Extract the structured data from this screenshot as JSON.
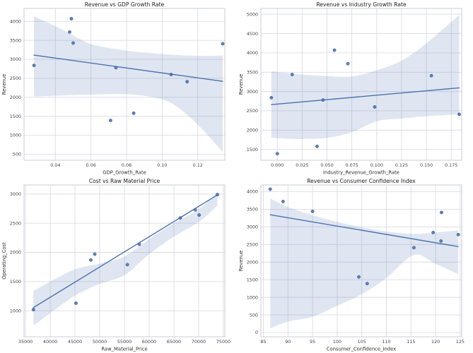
{
  "style": {
    "background": "#ffffff",
    "point_color": "#4c72b0",
    "point_edge_color": "#3c5f94",
    "line_color": "#4c72b0",
    "band_fill": "#4c72b0",
    "band_opacity": 0.18,
    "grid_color": "#dbdce5",
    "spine_color": "#c9ccd4",
    "title_color": "#1c1c1c",
    "tick_color": "#424242"
  },
  "chart_data": [
    {
      "type": "scatter",
      "title": "Revenue vs GDP Growth Rate",
      "xlabel": "GDP_Growth_Rate",
      "ylabel": "Revenue",
      "xlim": [
        0.0224,
        0.1352
      ],
      "ylim": [
        340,
        4340
      ],
      "xticks": [
        "0.04",
        "0.06",
        "0.08",
        "0.10",
        "0.12"
      ],
      "yticks": [
        "500",
        "1000",
        "1500",
        "2000",
        "2500",
        "3000",
        "3500",
        "4000"
      ],
      "grid": true,
      "legend": false,
      "points": [
        [
          0.028,
          2840
        ],
        [
          0.048,
          3720
        ],
        [
          0.049,
          4070
        ],
        [
          0.05,
          3430
        ],
        [
          0.071,
          1390
        ],
        [
          0.074,
          2780
        ],
        [
          0.084,
          1580
        ],
        [
          0.105,
          2600
        ],
        [
          0.114,
          2410
        ],
        [
          0.134,
          3410
        ]
      ],
      "regline": {
        "x1": 0.028,
        "y1": 3110,
        "x2": 0.134,
        "y2": 2420
      },
      "band": {
        "x": [
          0.028,
          0.045,
          0.06,
          0.08,
          0.095,
          0.105,
          0.115,
          0.125,
          0.134
        ],
        "upper": [
          4130,
          3760,
          3400,
          3230,
          3160,
          3120,
          3100,
          3090,
          3100
        ],
        "lower": [
          2020,
          2050,
          2070,
          2080,
          2000,
          1850,
          1500,
          1030,
          560
        ]
      }
    },
    {
      "type": "scatter",
      "title": "Revenue vs Industry Growth Rate",
      "xlabel": "Industry_Revenue_Growth_Rate",
      "ylabel": "Revenue",
      "xlim": [
        -0.0165,
        0.1855
      ],
      "ylim": [
        1220,
        5150
      ],
      "xticks": [
        "0.000",
        "0.025",
        "0.050",
        "0.075",
        "0.100",
        "0.125",
        "0.150",
        "0.175"
      ],
      "yticks": [
        "1500",
        "2000",
        "2500",
        "3000",
        "3500",
        "4000",
        "4500",
        "5000"
      ],
      "grid": true,
      "legend": false,
      "points": [
        [
          -0.006,
          2840
        ],
        [
          0.0,
          1390
        ],
        [
          0.015,
          3440
        ],
        [
          0.04,
          1580
        ],
        [
          0.046,
          2780
        ],
        [
          0.0575,
          4070
        ],
        [
          0.071,
          3720
        ],
        [
          0.098,
          2600
        ],
        [
          0.155,
          3410
        ],
        [
          0.183,
          2410
        ]
      ],
      "regline": {
        "x1": -0.006,
        "y1": 2660,
        "x2": 0.183,
        "y2": 3095
      },
      "band": {
        "x": [
          -0.006,
          0.02,
          0.05,
          0.075,
          0.1,
          0.125,
          0.15,
          0.183
        ],
        "upper": [
          3520,
          3450,
          3400,
          3390,
          3550,
          3800,
          4250,
          4980
        ],
        "lower": [
          1800,
          1770,
          1800,
          1950,
          2230,
          2300,
          2360,
          2410
        ]
      }
    },
    {
      "type": "scatter",
      "title": "Cost vs Raw Material Price",
      "xlabel": "Raw_Material_Price",
      "ylabel": "Operating_Cost",
      "xlim": [
        34700,
        75300
      ],
      "ylim": [
        555,
        3155
      ],
      "xticks": [
        "35000",
        "40000",
        "45000",
        "50000",
        "55000",
        "60000",
        "65000",
        "70000",
        "75000"
      ],
      "yticks": [
        "1000",
        "1500",
        "2000",
        "2500",
        "3000"
      ],
      "grid": true,
      "legend": false,
      "points": [
        [
          36600,
          1020
        ],
        [
          45200,
          1130
        ],
        [
          48200,
          1870
        ],
        [
          49000,
          1970
        ],
        [
          55600,
          1790
        ],
        [
          58000,
          2140
        ],
        [
          66300,
          2590
        ],
        [
          69300,
          2730
        ],
        [
          70100,
          2640
        ],
        [
          73800,
          2990
        ]
      ],
      "regline": {
        "x1": 36600,
        "y1": 1055,
        "x2": 73800,
        "y2": 2985
      },
      "band": {
        "x": [
          36600,
          40000,
          45000,
          50000,
          55000,
          60000,
          65000,
          70000,
          73800
        ],
        "upper": [
          1340,
          1500,
          1710,
          1810,
          1930,
          2230,
          2500,
          2740,
          3030
        ],
        "lower": [
          745,
          960,
          1260,
          1460,
          1610,
          1970,
          2270,
          2520,
          2800
        ]
      }
    },
    {
      "type": "scatter",
      "title": "Revenue vs Consumer Confidence Index",
      "xlabel": "Consumer_Confidence_Index",
      "ylabel": "Revenue",
      "xlim": [
        84.5,
        125.3
      ],
      "ylim": [
        -120,
        4190
      ],
      "xticks": [
        "85",
        "90",
        "95",
        "100",
        "105",
        "110",
        "115",
        "120",
        "125"
      ],
      "yticks": [
        "0",
        "500",
        "1000",
        "1500",
        "2000",
        "2500",
        "3000",
        "3500",
        "4000"
      ],
      "grid": true,
      "legend": false,
      "points": [
        [
          86.4,
          4070
        ],
        [
          89.0,
          3720
        ],
        [
          95.0,
          3440
        ],
        [
          104.4,
          1580
        ],
        [
          106.1,
          1390
        ],
        [
          115.6,
          2410
        ],
        [
          119.5,
          2840
        ],
        [
          121.1,
          2600
        ],
        [
          121.2,
          3410
        ],
        [
          124.6,
          2780
        ]
      ],
      "regline": {
        "x1": 86.4,
        "y1": 3345,
        "x2": 124.6,
        "y2": 2440
      },
      "band": {
        "x": [
          86.4,
          90,
          95,
          100,
          105,
          110,
          115.6,
          120,
          124.6
        ],
        "upper": [
          3810,
          3560,
          3330,
          3140,
          2990,
          2870,
          2800,
          2840,
          2900
        ],
        "lower": [
          120,
          310,
          450,
          760,
          1090,
          1550,
          2200,
          1950,
          1660
        ]
      }
    }
  ]
}
